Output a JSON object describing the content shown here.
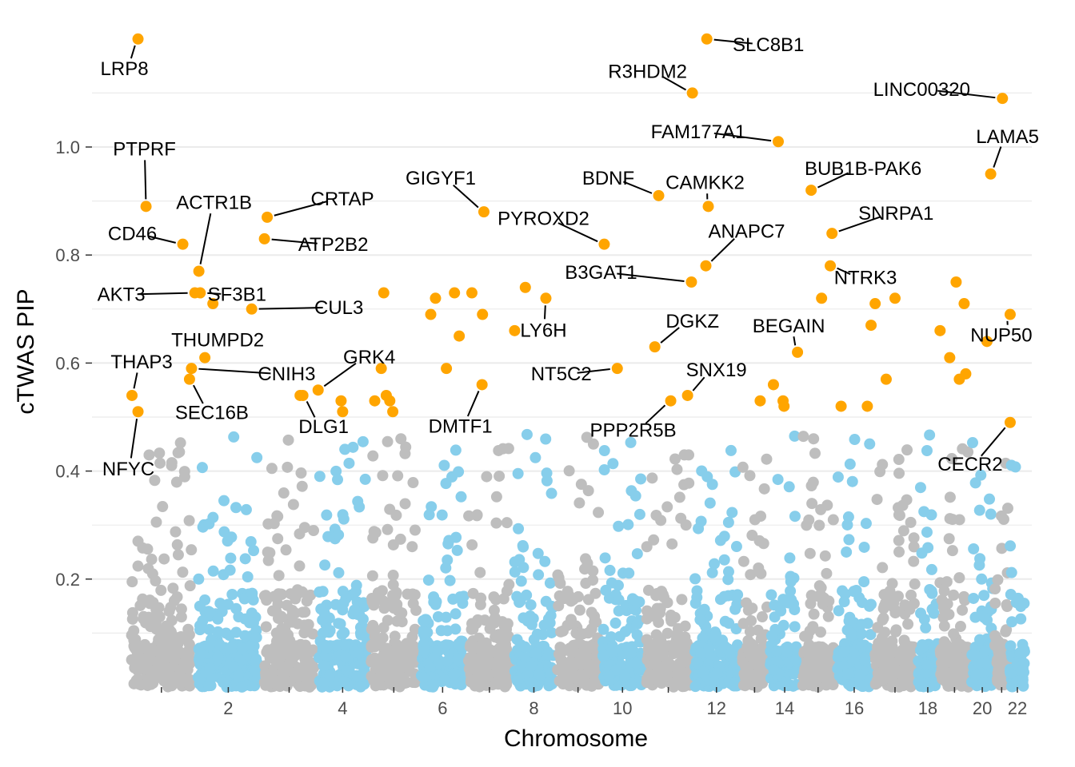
{
  "chart_data": {
    "type": "scatter",
    "title": "",
    "xlabel": "Chromosome",
    "ylabel": "cTWAS PIP",
    "ylim": [
      0,
      1.22
    ],
    "yticks": [
      0.2,
      0.4,
      0.6,
      0.8,
      1.0
    ],
    "ytick_labels": [
      "0.2",
      "0.4",
      "0.6",
      "0.8",
      "1.0"
    ],
    "xticks": [
      {
        "chrom": 1,
        "label": ""
      },
      {
        "chrom": 2,
        "label": "2"
      },
      {
        "chrom": 3,
        "label": ""
      },
      {
        "chrom": 4,
        "label": "4"
      },
      {
        "chrom": 5,
        "label": ""
      },
      {
        "chrom": 6,
        "label": "6"
      },
      {
        "chrom": 7,
        "label": ""
      },
      {
        "chrom": 8,
        "label": "8"
      },
      {
        "chrom": 9,
        "label": ""
      },
      {
        "chrom": 10,
        "label": "10"
      },
      {
        "chrom": 11,
        "label": ""
      },
      {
        "chrom": 12,
        "label": "12"
      },
      {
        "chrom": 13,
        "label": ""
      },
      {
        "chrom": 14,
        "label": "14"
      },
      {
        "chrom": 15,
        "label": ""
      },
      {
        "chrom": 16,
        "label": "16"
      },
      {
        "chrom": 17,
        "label": ""
      },
      {
        "chrom": 18,
        "label": "18"
      },
      {
        "chrom": 19,
        "label": ""
      },
      {
        "chrom": 20,
        "label": "20"
      },
      {
        "chrom": 21,
        "label": ""
      },
      {
        "chrom": 22,
        "label": "22"
      }
    ],
    "chromosome_ranges": [
      {
        "chrom": 1,
        "start": 0.0,
        "end": 1.0
      },
      {
        "chrom": 2,
        "start": 1.0,
        "end": 2.0
      },
      {
        "chrom": 3,
        "start": 2.0,
        "end": 2.82
      },
      {
        "chrom": 4,
        "start": 2.82,
        "end": 3.6
      },
      {
        "chrom": 5,
        "start": 3.6,
        "end": 4.35
      },
      {
        "chrom": 6,
        "start": 4.35,
        "end": 5.06
      },
      {
        "chrom": 7,
        "start": 5.06,
        "end": 5.75
      },
      {
        "chrom": 8,
        "start": 5.75,
        "end": 6.39
      },
      {
        "chrom": 9,
        "start": 6.39,
        "end": 7.07
      },
      {
        "chrom": 10,
        "start": 7.07,
        "end": 7.72
      },
      {
        "chrom": 11,
        "start": 7.72,
        "end": 8.44
      },
      {
        "chrom": 12,
        "start": 8.44,
        "end": 9.16
      },
      {
        "chrom": 13,
        "start": 9.16,
        "end": 9.58
      },
      {
        "chrom": 14,
        "start": 9.58,
        "end": 10.06
      },
      {
        "chrom": 15,
        "start": 10.06,
        "end": 10.58
      },
      {
        "chrom": 16,
        "start": 10.58,
        "end": 11.14
      },
      {
        "chrom": 17,
        "start": 11.14,
        "end": 11.8
      },
      {
        "chrom": 18,
        "start": 11.8,
        "end": 12.12
      },
      {
        "chrom": 19,
        "start": 12.12,
        "end": 12.6
      },
      {
        "chrom": 20,
        "start": 12.6,
        "end": 12.95
      },
      {
        "chrom": 21,
        "start": 12.95,
        "end": 13.18
      },
      {
        "chrom": 22,
        "start": 13.18,
        "end": 13.42
      }
    ],
    "colors": {
      "odd_chrom": "#bebebe",
      "even_chrom": "#87ceeb",
      "highlight": "#ffa500",
      "gridline": "#ebebeb",
      "label_line": "#000000"
    },
    "highlight_threshold": 0.5,
    "background_points_note": "many genes per chromosome with PIP < 0.5, colored alternately grey / sky blue by chromosome",
    "labeled_genes": [
      {
        "gene": "LRP8",
        "chrom": 1,
        "pos": 0.15,
        "pip": 1.2
      },
      {
        "gene": "PTPRF",
        "chrom": 1,
        "pos": 0.27,
        "pip": 0.89
      },
      {
        "gene": "CD46",
        "chrom": 1,
        "pos": 0.82,
        "pip": 0.82
      },
      {
        "gene": "AKT3",
        "chrom": 1,
        "pos": 1.0,
        "pip": 0.73
      },
      {
        "gene": "THAP3",
        "chrom": 1,
        "pos": 0.06,
        "pip": 0.54
      },
      {
        "gene": "NFYC",
        "chrom": 1,
        "pos": 0.15,
        "pip": 0.51
      },
      {
        "gene": "ACTR1B",
        "chrom": 2,
        "pos": 0.06,
        "pip": 0.77
      },
      {
        "gene": "SF3B1",
        "chrom": 2,
        "pos": 0.08,
        "pip": 0.73
      },
      {
        "gene": "THUMPD2",
        "chrom": 2,
        "pos": 0.15,
        "pip": 0.61
      },
      {
        "gene": "CNIH3",
        "chrom": 1,
        "pos": 0.95,
        "pip": 0.59
      },
      {
        "gene": "SEC16B",
        "chrom": 1,
        "pos": 0.92,
        "pip": 0.57
      },
      {
        "gene": "CRTAP",
        "chrom": 3,
        "pos": 0.1,
        "pip": 0.87
      },
      {
        "gene": "ATP2B2",
        "chrom": 3,
        "pos": 0.05,
        "pip": 0.83
      },
      {
        "gene": "CUL3",
        "chrom": 2,
        "pos": 0.85,
        "pip": 0.7
      },
      {
        "gene": "GRK4",
        "chrom": 4,
        "pos": 0.03,
        "pip": 0.55
      },
      {
        "gene": "DLG1",
        "chrom": 3,
        "pos": 0.75,
        "pip": 0.54
      },
      {
        "gene": "GIGYF1",
        "chrom": 7,
        "pos": 0.38,
        "pip": 0.88
      },
      {
        "gene": "PYROXD2",
        "chrom": 10,
        "pos": 0.08,
        "pip": 0.82
      },
      {
        "gene": "LY6H",
        "chrom": 8,
        "pos": 0.78,
        "pip": 0.72
      },
      {
        "gene": "DMTF1",
        "chrom": 7,
        "pos": 0.34,
        "pip": 0.56
      },
      {
        "gene": "BDNF",
        "chrom": 11,
        "pos": 0.3,
        "pip": 0.91
      },
      {
        "gene": "CAMKK2",
        "chrom": 12,
        "pos": 0.33,
        "pip": 0.89
      },
      {
        "gene": "B3GAT1",
        "chrom": 11,
        "pos": 0.98,
        "pip": 0.75
      },
      {
        "gene": "DGKZ",
        "chrom": 11,
        "pos": 0.22,
        "pip": 0.63
      },
      {
        "gene": "NT5C2",
        "chrom": 10,
        "pos": 0.38,
        "pip": 0.59
      },
      {
        "gene": "SNX19",
        "chrom": 11,
        "pos": 0.9,
        "pip": 0.54
      },
      {
        "gene": "PPP2R5B",
        "chrom": 11,
        "pos": 0.55,
        "pip": 0.53
      },
      {
        "gene": "SLC8B1",
        "chrom": 12,
        "pos": 0.3,
        "pip": 1.2
      },
      {
        "gene": "R3HDM2",
        "chrom": 12,
        "pos": 0.0,
        "pip": 1.1
      },
      {
        "gene": "FAM177A1",
        "chrom": 14,
        "pos": 0.3,
        "pip": 1.01
      },
      {
        "gene": "ANAPC7",
        "chrom": 12,
        "pos": 0.28,
        "pip": 0.78
      },
      {
        "gene": "BEGAIN",
        "chrom": 14,
        "pos": 0.9,
        "pip": 0.62
      },
      {
        "gene": "LINC00320",
        "chrom": 21,
        "pos": 0.55,
        "pip": 1.09
      },
      {
        "gene": "LAMA5",
        "chrom": 20,
        "pos": 0.86,
        "pip": 0.95
      },
      {
        "gene": "BUB1B-PAK6",
        "chrom": 15,
        "pos": 0.3,
        "pip": 0.92
      },
      {
        "gene": "SNRPA1",
        "chrom": 15,
        "pos": 0.9,
        "pip": 0.84
      },
      {
        "gene": "NTRK3",
        "chrom": 15,
        "pos": 0.85,
        "pip": 0.78
      },
      {
        "gene": "NUP50",
        "chrom": 22,
        "pos": 0.05,
        "pip": 0.69
      },
      {
        "gene": "CECR2",
        "chrom": 22,
        "pos": 0.05,
        "pip": 0.49
      }
    ],
    "other_highlight_points": [
      {
        "chrom": 2,
        "pos": 0.27,
        "pip": 0.71
      },
      {
        "chrom": 3,
        "pos": 0.7,
        "pip": 0.54
      },
      {
        "chrom": 4,
        "pos": 0.47,
        "pip": 0.53
      },
      {
        "chrom": 4,
        "pos": 0.5,
        "pip": 0.51
      },
      {
        "chrom": 5,
        "pos": 0.12,
        "pip": 0.53
      },
      {
        "chrom": 5,
        "pos": 0.25,
        "pip": 0.59
      },
      {
        "chrom": 5,
        "pos": 0.3,
        "pip": 0.73
      },
      {
        "chrom": 5,
        "pos": 0.35,
        "pip": 0.54
      },
      {
        "chrom": 5,
        "pos": 0.42,
        "pip": 0.53
      },
      {
        "chrom": 5,
        "pos": 0.48,
        "pip": 0.51
      },
      {
        "chrom": 6,
        "pos": 0.25,
        "pip": 0.69
      },
      {
        "chrom": 6,
        "pos": 0.35,
        "pip": 0.72
      },
      {
        "chrom": 6,
        "pos": 0.58,
        "pip": 0.59
      },
      {
        "chrom": 6,
        "pos": 0.75,
        "pip": 0.73
      },
      {
        "chrom": 6,
        "pos": 0.85,
        "pip": 0.65
      },
      {
        "chrom": 7,
        "pos": 0.12,
        "pip": 0.73
      },
      {
        "chrom": 7,
        "pos": 0.35,
        "pip": 0.69
      },
      {
        "chrom": 8,
        "pos": 0.05,
        "pip": 0.66
      },
      {
        "chrom": 8,
        "pos": 0.3,
        "pip": 0.74
      },
      {
        "chrom": 13,
        "pos": 0.7,
        "pip": 0.53
      },
      {
        "chrom": 14,
        "pos": 0.15,
        "pip": 0.56
      },
      {
        "chrom": 14,
        "pos": 0.45,
        "pip": 0.53
      },
      {
        "chrom": 14,
        "pos": 0.48,
        "pip": 0.52
      },
      {
        "chrom": 15,
        "pos": 0.6,
        "pip": 0.72
      },
      {
        "chrom": 16,
        "pos": 0.15,
        "pip": 0.52
      },
      {
        "chrom": 16,
        "pos": 0.85,
        "pip": 0.52
      },
      {
        "chrom": 17,
        "pos": 0.05,
        "pip": 0.71
      },
      {
        "chrom": 17,
        "pos": 0.3,
        "pip": 0.57
      },
      {
        "chrom": 17,
        "pos": 0.5,
        "pip": 0.72
      },
      {
        "chrom": 19,
        "pos": 0.05,
        "pip": 0.66
      },
      {
        "chrom": 19,
        "pos": 0.35,
        "pip": 0.61
      },
      {
        "chrom": 19,
        "pos": 0.55,
        "pip": 0.75
      },
      {
        "chrom": 19,
        "pos": 0.65,
        "pip": 0.57
      },
      {
        "chrom": 19,
        "pos": 0.8,
        "pip": 0.71
      },
      {
        "chrom": 19,
        "pos": 0.85,
        "pip": 0.58
      },
      {
        "chrom": 20,
        "pos": 0.7,
        "pip": 0.64
      },
      {
        "chrom": 16,
        "pos": 0.95,
        "pip": 0.67
      }
    ]
  }
}
